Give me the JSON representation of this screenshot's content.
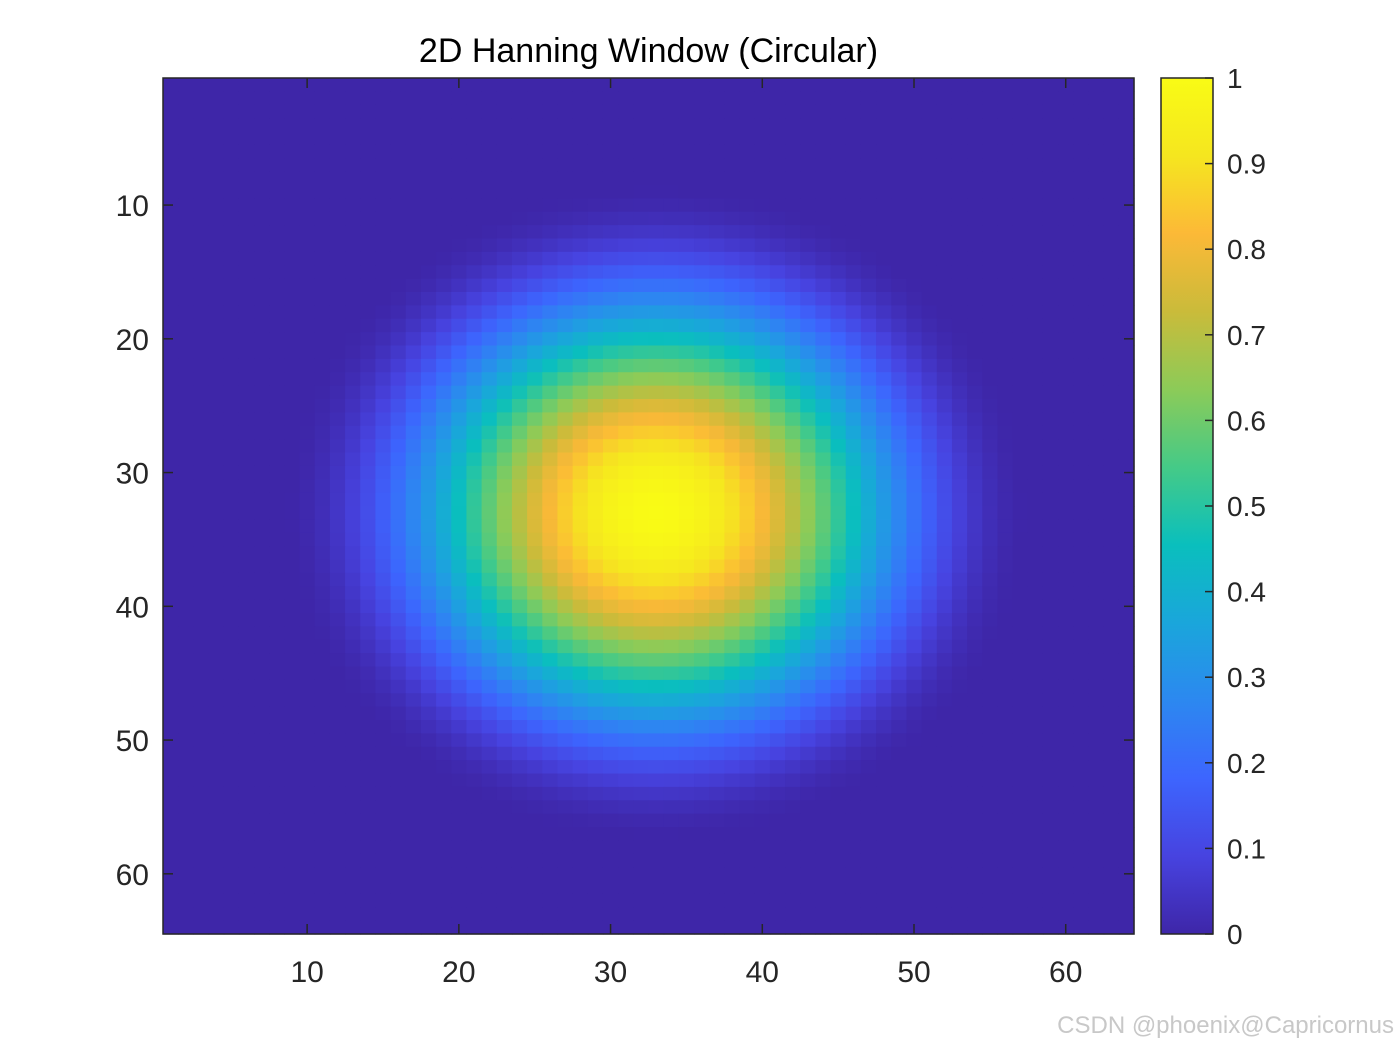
{
  "chart_data": {
    "type": "heatmap",
    "title": "2D Hanning Window (Circular)",
    "xlabel": "",
    "ylabel": "",
    "grid": false,
    "colormap": "parula",
    "matrix_size": [
      64,
      64
    ],
    "center": [
      33,
      33
    ],
    "radius": 24.5,
    "function": "0.5*(1+cos(pi*r/R)) for r<R else 0",
    "peak_value": 1,
    "xlim": [
      0.5,
      64.5
    ],
    "ylim": [
      0.5,
      64.5
    ],
    "y_direction": "reverse",
    "x_ticks": [
      10,
      20,
      30,
      40,
      50,
      60
    ],
    "x_tick_labels": [
      "10",
      "20",
      "30",
      "40",
      "50",
      "60"
    ],
    "y_ticks": [
      10,
      20,
      30,
      40,
      50,
      60
    ],
    "y_tick_labels": [
      "10",
      "20",
      "30",
      "40",
      "50",
      "60"
    ],
    "colorbar": {
      "position": "right",
      "limits": [
        0,
        1
      ],
      "ticks": [
        0,
        0.1,
        0.2,
        0.3,
        0.4,
        0.5,
        0.6,
        0.7,
        0.8,
        0.9,
        1
      ],
      "tick_labels": [
        "0",
        "0.1",
        "0.2",
        "0.3",
        "0.4",
        "0.5",
        "0.6",
        "0.7",
        "0.8",
        "0.9",
        "1"
      ]
    }
  },
  "colors": {
    "colormap_stops": [
      "#3e26a8",
      "#4743e0",
      "#3d65fe",
      "#2c88f0",
      "#1aa6db",
      "#0abfbd",
      "#45ca87",
      "#8ccb58",
      "#cabb3a",
      "#fcb937",
      "#f5e61f",
      "#f9fb15"
    ],
    "axis_line": "#262626",
    "background": "#ffffff"
  },
  "watermark": "CSDN @phoenix@Capricornus"
}
